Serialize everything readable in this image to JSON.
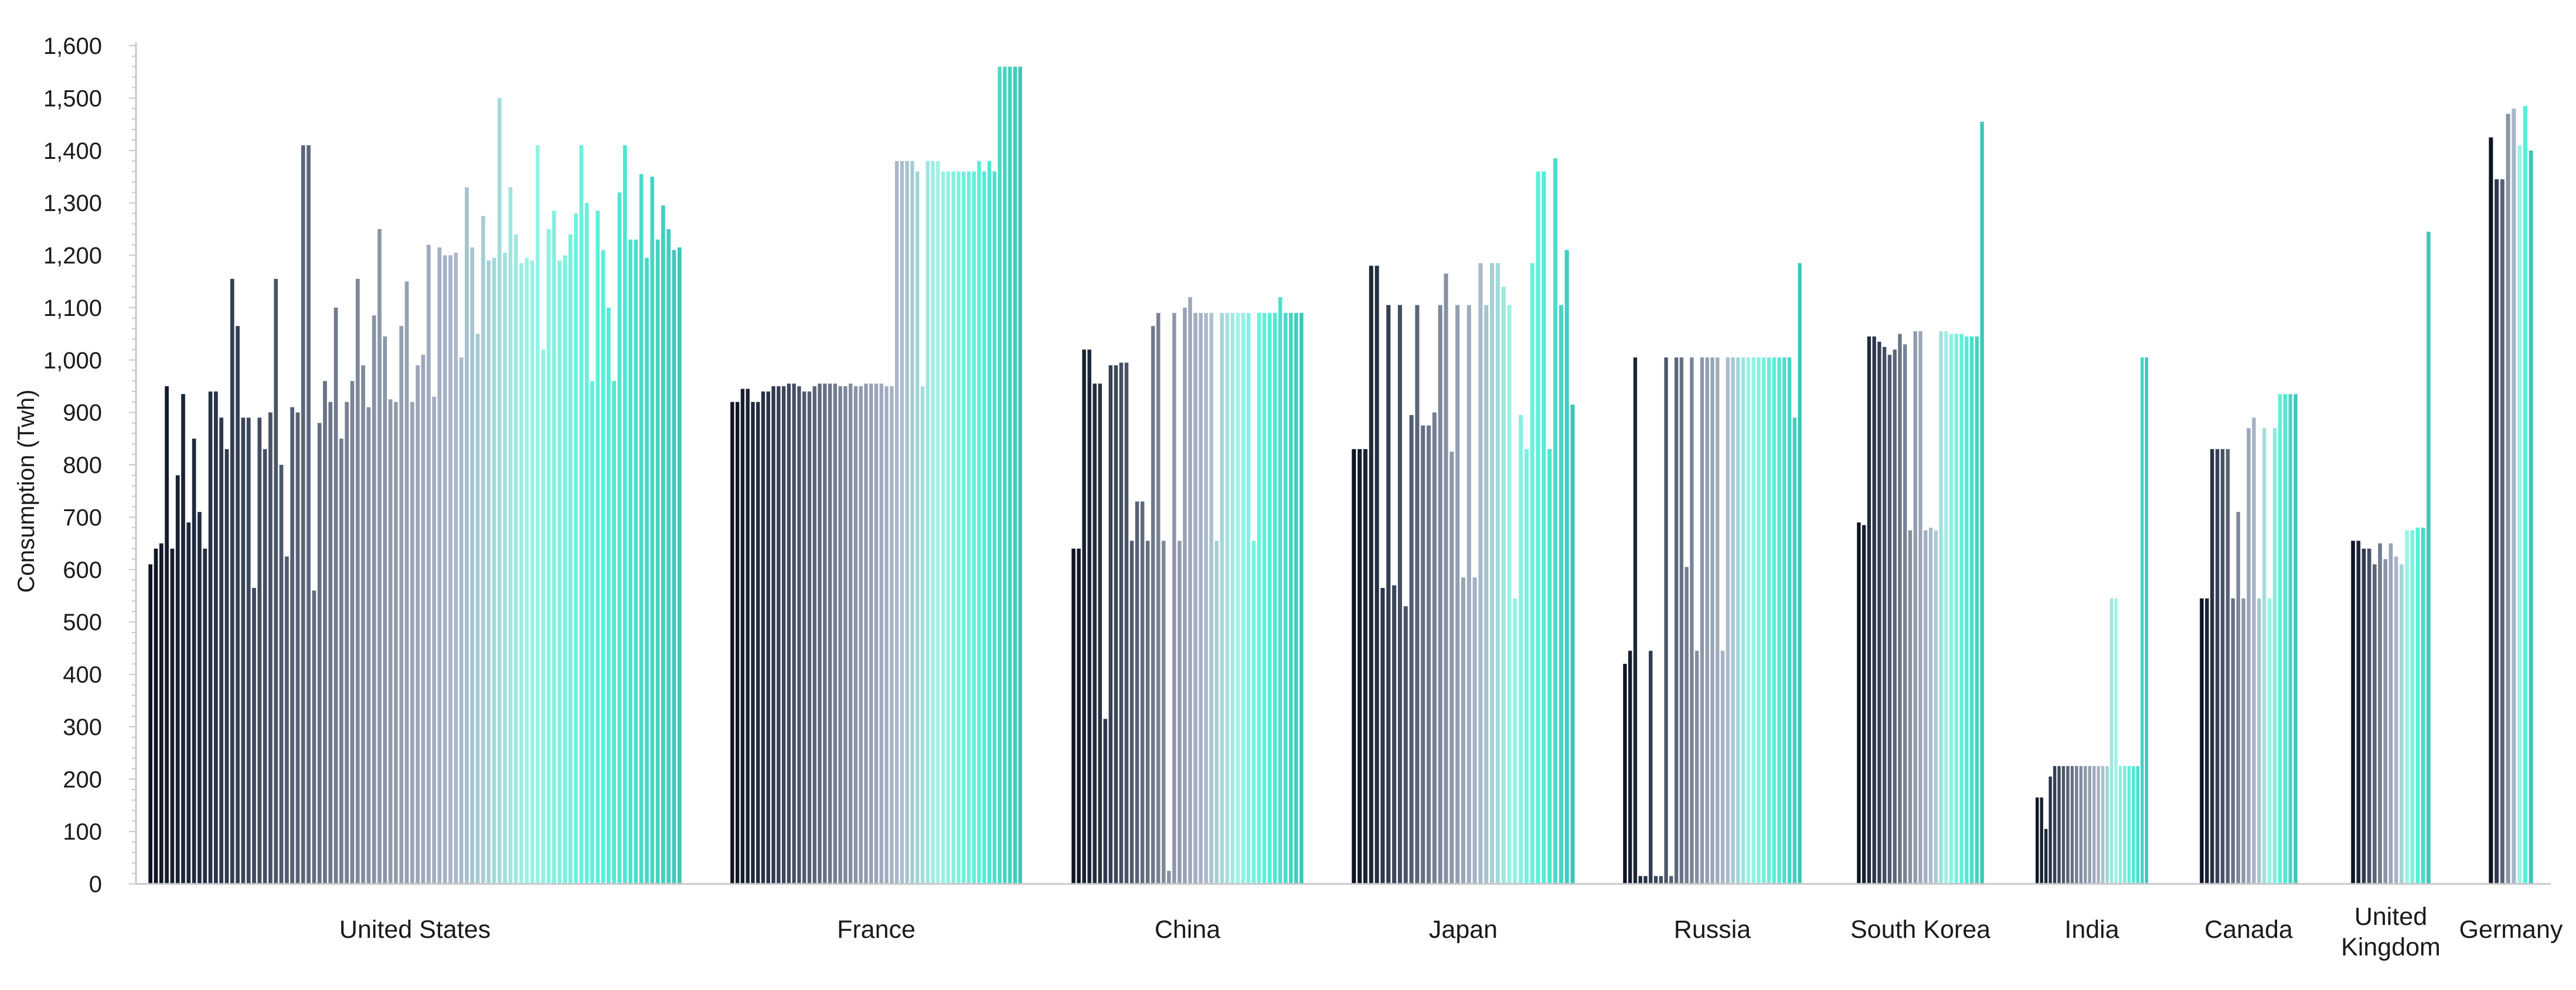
{
  "chart_data": {
    "type": "bar",
    "title": "",
    "xlabel": "",
    "ylabel": "Consumption (Twh)",
    "ylim": [
      0,
      1600
    ],
    "y_ticks": [
      0,
      100,
      200,
      300,
      400,
      500,
      600,
      700,
      800,
      900,
      1000,
      1100,
      1200,
      1300,
      1400,
      1500,
      1600
    ],
    "y_tick_labels": [
      "0",
      "100",
      "200",
      "300",
      "400",
      "500",
      "600",
      "700",
      "800",
      "900",
      "1,000",
      "1,100",
      "1,200",
      "1,300",
      "1,400",
      "1,500",
      "1,600"
    ],
    "grid": false,
    "legend": "none",
    "color_ramp": [
      "#0e1424",
      "#2f3a4f",
      "#5a6478",
      "#8a94a6",
      "#a9b5c8",
      "#9ef2e6",
      "#55f0d8",
      "#3cc6b9"
    ],
    "categories": [
      {
        "label": "United States",
        "values": [
          610,
          640,
          650,
          950,
          640,
          780,
          935,
          690,
          850,
          710,
          640,
          940,
          940,
          890,
          830,
          1155,
          1065,
          890,
          890,
          565,
          890,
          830,
          900,
          1155,
          800,
          625,
          910,
          900,
          1410,
          1410,
          560,
          880,
          960,
          920,
          1100,
          850,
          920,
          960,
          1155,
          990,
          910,
          1085,
          1250,
          1045,
          925,
          920,
          1065,
          1150,
          920,
          990,
          1010,
          1220,
          930,
          1215,
          1200,
          1200,
          1205,
          1005,
          1330,
          1215,
          1050,
          1275,
          1190,
          1195,
          1500,
          1205,
          1330,
          1240,
          1185,
          1195,
          1190,
          1410,
          1020,
          1250,
          1285,
          1190,
          1200,
          1240,
          1280,
          1410,
          1300,
          960,
          1285,
          1210,
          1100,
          960,
          1320,
          1410,
          1230,
          1230,
          1355,
          1195,
          1350,
          1230,
          1295,
          1250,
          1210,
          1215
        ]
      },
      {
        "label": "France",
        "values": [
          920,
          920,
          945,
          945,
          920,
          920,
          940,
          940,
          950,
          950,
          950,
          955,
          955,
          950,
          940,
          940,
          950,
          955,
          955,
          955,
          955,
          950,
          950,
          955,
          950,
          950,
          955,
          955,
          955,
          955,
          950,
          950,
          1380,
          1380,
          1380,
          1380,
          1360,
          950,
          1380,
          1380,
          1380,
          1360,
          1360,
          1360,
          1360,
          1360,
          1360,
          1360,
          1380,
          1360,
          1380,
          1360,
          1560,
          1560,
          1560,
          1560,
          1560
        ]
      },
      {
        "label": "China",
        "values": [
          640,
          640,
          1020,
          1020,
          955,
          955,
          315,
          990,
          990,
          995,
          995,
          655,
          730,
          730,
          655,
          1065,
          1090,
          655,
          25,
          1090,
          655,
          1100,
          1120,
          1090,
          1090,
          1090,
          1090,
          655,
          1090,
          1090,
          1090,
          1090,
          1090,
          1090,
          655,
          1090,
          1090,
          1090,
          1090,
          1120,
          1090,
          1090,
          1090,
          1090
        ]
      },
      {
        "label": "Japan",
        "values": [
          830,
          830,
          830,
          1180,
          1180,
          565,
          1105,
          570,
          1105,
          530,
          895,
          1105,
          875,
          875,
          900,
          1105,
          1165,
          825,
          1105,
          585,
          1105,
          585,
          1185,
          1105,
          1185,
          1185,
          1140,
          1105,
          545,
          895,
          830,
          1185,
          1360,
          1360,
          830,
          1385,
          1105,
          1210,
          915
        ]
      },
      {
        "label": "Russia",
        "values": [
          420,
          445,
          1005,
          15,
          15,
          445,
          15,
          15,
          1005,
          15,
          1005,
          1005,
          605,
          1005,
          445,
          1005,
          1005,
          1005,
          1005,
          445,
          1005,
          1005,
          1005,
          1005,
          1005,
          1005,
          1005,
          1005,
          1005,
          1005,
          1005,
          1005,
          1005,
          890,
          1185
        ]
      },
      {
        "label": "South Korea",
        "values": [
          690,
          685,
          1045,
          1045,
          1035,
          1025,
          1010,
          1020,
          1050,
          1030,
          675,
          1055,
          1055,
          675,
          680,
          675,
          1055,
          1055,
          1050,
          1050,
          1050,
          1045,
          1045,
          1045,
          1455
        ]
      },
      {
        "label": "India",
        "values": [
          165,
          165,
          105,
          205,
          225,
          225,
          225,
          225,
          225,
          225,
          225,
          225,
          225,
          225,
          225,
          225,
          225,
          545,
          545,
          225,
          225,
          225,
          225,
          225,
          1005,
          1005
        ]
      },
      {
        "label": "Canada",
        "values": [
          545,
          545,
          830,
          830,
          830,
          830,
          545,
          710,
          545,
          870,
          890,
          545,
          870,
          545,
          870,
          935,
          935,
          935,
          935
        ]
      },
      {
        "label": "United Kingdom",
        "values": [
          655,
          655,
          640,
          640,
          610,
          650,
          620,
          650,
          625,
          610,
          675,
          675,
          680,
          680,
          1245
        ]
      },
      {
        "label": "Germany",
        "values": [
          1425,
          1345,
          1345,
          1470,
          1480,
          1410,
          1485,
          1400
        ]
      }
    ]
  }
}
